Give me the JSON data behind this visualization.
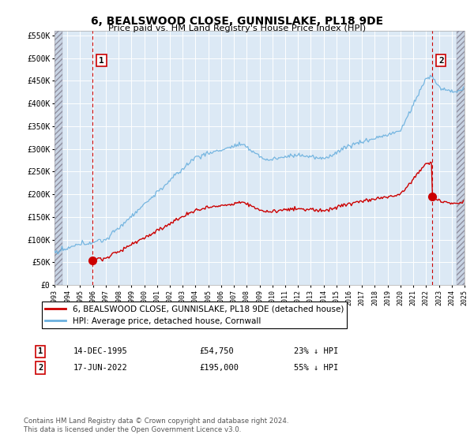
{
  "title": "6, BEALSWOOD CLOSE, GUNNISLAKE, PL18 9DE",
  "subtitle": "Price paid vs. HM Land Registry's House Price Index (HPI)",
  "ylim": [
    0,
    560000
  ],
  "yticks": [
    0,
    50000,
    100000,
    150000,
    200000,
    250000,
    300000,
    350000,
    400000,
    450000,
    500000,
    550000
  ],
  "ytick_labels": [
    "£0",
    "£50K",
    "£100K",
    "£150K",
    "£200K",
    "£250K",
    "£300K",
    "£350K",
    "£400K",
    "£450K",
    "£500K",
    "£550K"
  ],
  "hpi_color": "#6ab0de",
  "price_color": "#cc0000",
  "annotation_color": "#cc0000",
  "bg_color": "#dce9f5",
  "hatch_bg_color": "#c8d4e4",
  "grid_color": "#ffffff",
  "legend_labels": [
    "6, BEALSWOOD CLOSE, GUNNISLAKE, PL18 9DE (detached house)",
    "HPI: Average price, detached house, Cornwall"
  ],
  "transaction1": {
    "label": "1",
    "date": "14-DEC-1995",
    "price": 54750,
    "note": "23% ↓ HPI",
    "year": 1995.96
  },
  "transaction2": {
    "label": "2",
    "date": "17-JUN-2022",
    "price": 195000,
    "note": "55% ↓ HPI",
    "year": 2022.46
  },
  "footer": "Contains HM Land Registry data © Crown copyright and database right 2024.\nThis data is licensed under the Open Government Licence v3.0.",
  "xlim_start": 1993,
  "xlim_end": 2025
}
